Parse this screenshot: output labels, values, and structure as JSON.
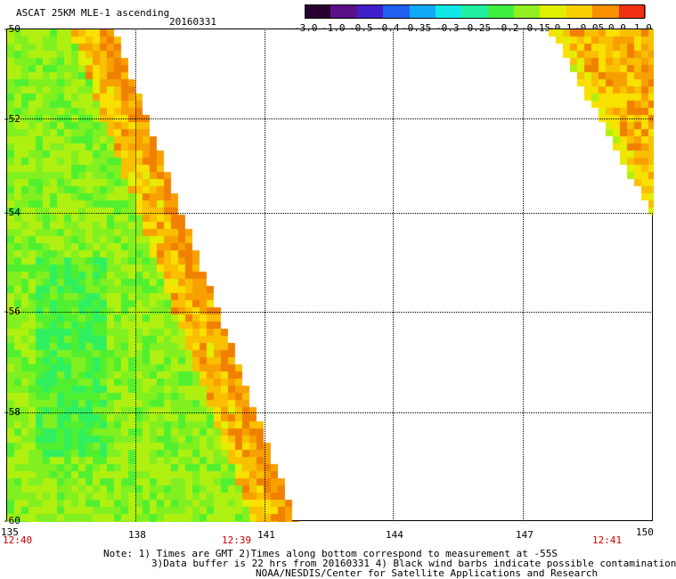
{
  "header": {
    "product_title": "ASCAT 25KM MLE-1 ascending",
    "date": "20160331"
  },
  "colorbar": {
    "labels": [
      "-3.0",
      "-1.0",
      "-0.5",
      "-0.4",
      "-0.35",
      "-0.3",
      "-0.25",
      "-0.2",
      "-0.15",
      "-0.1",
      "-0.05",
      "0.0",
      "1.0"
    ],
    "colors": [
      "#2a0030",
      "#5a1088",
      "#4020c8",
      "#2060f0",
      "#10a8f8",
      "#10e8e8",
      "#20f0a0",
      "#40f040",
      "#90f020",
      "#e0f000",
      "#f8d000",
      "#f89000",
      "#f03010"
    ]
  },
  "axes": {
    "lat_labels": [
      "-50",
      "-52",
      "-54",
      "-56",
      "-58",
      "-60"
    ],
    "lon_labels": [
      "135",
      "138",
      "141",
      "144",
      "147",
      "150"
    ]
  },
  "time_labels": [
    "12:40",
    "12:39",
    "12:41"
  ],
  "notes": {
    "line1": "Note: 1) Times are GMT 2)Times along bottom correspond to measurement at -55S",
    "line2": "3)Data buffer is 22 hrs from 20160331 4) Black wind barbs indicate possible contamination",
    "line3": "NOAA/NESDIS/Center for Satellite Applications and Research"
  }
}
